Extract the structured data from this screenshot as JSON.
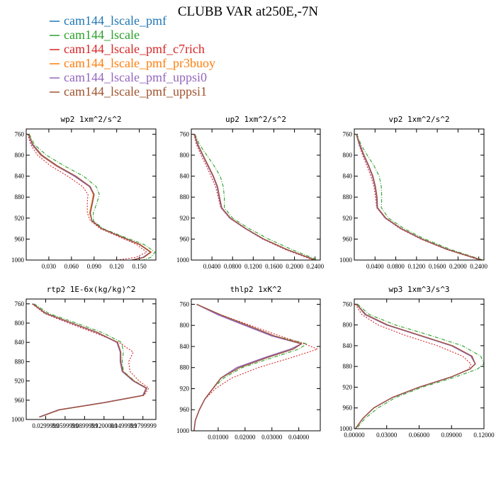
{
  "title": "CLUBB VAR at250E,-7N",
  "legend": [
    {
      "label": "cam144_lscale_pmf",
      "color": "#1f77b4"
    },
    {
      "label": "cam144_lscale",
      "color": "#2ca02c"
    },
    {
      "label": "cam144_lscale_pmf_c7rich",
      "color": "#d62728"
    },
    {
      "label": "cam144_lscale_pmf_pr3buoy",
      "color": "#ff7f0e"
    },
    {
      "label": "cam144_lscale_pmf_uppsi0",
      "color": "#9467bd"
    },
    {
      "label": "cam144_lscale_pmf_uppsi1",
      "color": "#a0522d"
    }
  ],
  "chart_data": [
    {
      "type": "line",
      "title": "wp2  1xm^2/s^2",
      "xlim": [
        0.0,
        0.172
      ],
      "ylim": [
        1000,
        750
      ],
      "xticks": [
        0.03,
        0.06,
        0.09,
        0.12,
        0.15
      ],
      "xtick_labels": [
        "0.030",
        "0.060",
        "0.090",
        "0.120",
        "0.150"
      ],
      "yticks": [
        760,
        800,
        840,
        880,
        920,
        960,
        1000
      ],
      "y": [
        760,
        780,
        800,
        820,
        840,
        860,
        875,
        890,
        910,
        925,
        940,
        955,
        970,
        985,
        995,
        1000
      ],
      "series": [
        {
          "name": "cam144_lscale_pmf",
          "values": [
            0.003,
            0.008,
            0.02,
            0.04,
            0.065,
            0.085,
            0.09,
            0.088,
            0.085,
            0.087,
            0.1,
            0.125,
            0.15,
            0.165,
            0.155,
            0.14
          ]
        },
        {
          "name": "cam144_lscale",
          "values": [
            0.004,
            0.011,
            0.027,
            0.05,
            0.076,
            0.093,
            0.097,
            0.094,
            0.089,
            0.089,
            0.102,
            0.128,
            0.156,
            0.171,
            0.165,
            0.155
          ]
        },
        {
          "name": "cam144_lscale_pmf_c7rich",
          "values": [
            0.002,
            0.006,
            0.015,
            0.032,
            0.055,
            0.075,
            0.082,
            0.081,
            0.081,
            0.085,
            0.098,
            0.122,
            0.146,
            0.16,
            0.145,
            0.12
          ]
        },
        {
          "name": "cam144_lscale_pmf_pr3buoy",
          "values": [
            0.003,
            0.008,
            0.019,
            0.039,
            0.064,
            0.084,
            0.089,
            0.087,
            0.084,
            0.087,
            0.1,
            0.125,
            0.151,
            0.166,
            0.156,
            0.141
          ]
        },
        {
          "name": "cam144_lscale_pmf_uppsi0",
          "values": [
            0.003,
            0.008,
            0.02,
            0.04,
            0.064,
            0.084,
            0.09,
            0.088,
            0.085,
            0.087,
            0.1,
            0.125,
            0.15,
            0.165,
            0.155,
            0.14
          ]
        },
        {
          "name": "cam144_lscale_pmf_uppsi1",
          "values": [
            0.003,
            0.009,
            0.021,
            0.041,
            0.066,
            0.085,
            0.09,
            0.088,
            0.085,
            0.087,
            0.1,
            0.125,
            0.15,
            0.165,
            0.156,
            0.141
          ]
        }
      ]
    },
    {
      "type": "line",
      "title": "up2  1xm^2/s^2",
      "xlim": [
        0.0,
        0.25
      ],
      "ylim": [
        1000,
        750
      ],
      "xticks": [
        0.04,
        0.08,
        0.12,
        0.16,
        0.2,
        0.24
      ],
      "xtick_labels": [
        "0.0400",
        "0.0800",
        "0.1200",
        "0.1600",
        "0.2000",
        "0.2400"
      ],
      "yticks": [
        760,
        800,
        840,
        880,
        920,
        960,
        1000
      ],
      "y": [
        760,
        780,
        800,
        820,
        840,
        860,
        880,
        900,
        920,
        940,
        960,
        980,
        1000
      ],
      "series": [
        {
          "name": "cam144_lscale_pmf",
          "values": [
            0.006,
            0.012,
            0.022,
            0.032,
            0.042,
            0.05,
            0.054,
            0.058,
            0.075,
            0.105,
            0.14,
            0.185,
            0.24
          ]
        },
        {
          "name": "cam144_lscale",
          "values": [
            0.007,
            0.016,
            0.03,
            0.044,
            0.056,
            0.062,
            0.064,
            0.064,
            0.08,
            0.112,
            0.15,
            0.195,
            0.245
          ]
        },
        {
          "name": "cam144_lscale_pmf_c7rich",
          "values": [
            0.005,
            0.01,
            0.019,
            0.029,
            0.038,
            0.047,
            0.052,
            0.057,
            0.074,
            0.104,
            0.138,
            0.182,
            0.236
          ]
        },
        {
          "name": "cam144_lscale_pmf_pr3buoy",
          "values": [
            0.006,
            0.012,
            0.022,
            0.032,
            0.042,
            0.05,
            0.054,
            0.058,
            0.075,
            0.105,
            0.14,
            0.185,
            0.24
          ]
        },
        {
          "name": "cam144_lscale_pmf_uppsi0",
          "values": [
            0.006,
            0.012,
            0.022,
            0.032,
            0.042,
            0.05,
            0.054,
            0.058,
            0.075,
            0.105,
            0.14,
            0.185,
            0.24
          ]
        },
        {
          "name": "cam144_lscale_pmf_uppsi1",
          "values": [
            0.006,
            0.013,
            0.023,
            0.033,
            0.043,
            0.051,
            0.055,
            0.059,
            0.076,
            0.106,
            0.141,
            0.186,
            0.241
          ]
        }
      ]
    },
    {
      "type": "line",
      "title": "vp2  1xm^2/s^2",
      "xlim": [
        0.0,
        0.25
      ],
      "ylim": [
        1000,
        750
      ],
      "xticks": [
        0.04,
        0.08,
        0.12,
        0.16,
        0.2,
        0.24
      ],
      "xtick_labels": [
        "0.0400",
        "0.0800",
        "0.1200",
        "0.1600",
        "0.2000",
        "0.2400"
      ],
      "yticks": [
        760,
        800,
        840,
        880,
        920,
        960,
        1000
      ],
      "y": [
        760,
        780,
        800,
        820,
        840,
        860,
        880,
        900,
        920,
        940,
        960,
        980,
        1000
      ],
      "series": [
        {
          "name": "cam144_lscale_pmf",
          "values": [
            0.004,
            0.01,
            0.018,
            0.027,
            0.035,
            0.04,
            0.043,
            0.044,
            0.06,
            0.09,
            0.13,
            0.18,
            0.245
          ]
        },
        {
          "name": "cam144_lscale",
          "values": [
            0.005,
            0.013,
            0.025,
            0.038,
            0.048,
            0.052,
            0.053,
            0.052,
            0.066,
            0.096,
            0.136,
            0.186,
            0.248
          ]
        },
        {
          "name": "cam144_lscale_pmf_c7rich",
          "values": [
            0.004,
            0.009,
            0.016,
            0.024,
            0.032,
            0.038,
            0.041,
            0.043,
            0.059,
            0.088,
            0.128,
            0.178,
            0.242
          ]
        },
        {
          "name": "cam144_lscale_pmf_pr3buoy",
          "values": [
            0.004,
            0.01,
            0.018,
            0.027,
            0.035,
            0.04,
            0.043,
            0.044,
            0.06,
            0.09,
            0.13,
            0.18,
            0.245
          ]
        },
        {
          "name": "cam144_lscale_pmf_uppsi0",
          "values": [
            0.004,
            0.01,
            0.018,
            0.027,
            0.035,
            0.04,
            0.043,
            0.044,
            0.06,
            0.09,
            0.13,
            0.18,
            0.245
          ]
        },
        {
          "name": "cam144_lscale_pmf_uppsi1",
          "values": [
            0.004,
            0.011,
            0.019,
            0.028,
            0.036,
            0.041,
            0.044,
            0.045,
            0.061,
            0.091,
            0.131,
            0.181,
            0.246
          ]
        }
      ]
    },
    {
      "type": "line",
      "title": "rtp2  1E-6x(kg/kg)^2",
      "xlim": [
        0.0,
        0.2
      ],
      "ylim": [
        1000,
        750
      ],
      "xticks": [
        0.03,
        0.06,
        0.09,
        0.12,
        0.15,
        0.18
      ],
      "xtick_labels": [
        "0.0299999",
        "0.0599999",
        "0.0899999",
        "0.1200000",
        "0.1499999",
        "0.1799999"
      ],
      "yticks": [
        760,
        800,
        840,
        880,
        920,
        960,
        1000
      ],
      "y": [
        760,
        780,
        800,
        820,
        840,
        860,
        880,
        900,
        920,
        935,
        950,
        965,
        980,
        995
      ],
      "series": [
        {
          "name": "cam144_lscale_pmf",
          "values": [
            0.01,
            0.03,
            0.07,
            0.11,
            0.14,
            0.145,
            0.145,
            0.148,
            0.165,
            0.185,
            0.18,
            0.12,
            0.05,
            0.02
          ]
        },
        {
          "name": "cam144_lscale",
          "values": [
            0.012,
            0.035,
            0.077,
            0.118,
            0.147,
            0.15,
            0.148,
            0.15,
            0.167,
            0.186,
            0.181,
            0.121,
            0.051,
            0.021
          ]
        },
        {
          "name": "cam144_lscale_pmf_c7rich",
          "values": [
            0.009,
            0.028,
            0.065,
            0.105,
            0.143,
            0.165,
            0.158,
            0.16,
            0.174,
            0.189,
            0.182,
            0.122,
            0.052,
            0.02
          ]
        },
        {
          "name": "cam144_lscale_pmf_pr3buoy",
          "values": [
            0.01,
            0.03,
            0.07,
            0.11,
            0.14,
            0.145,
            0.145,
            0.148,
            0.165,
            0.185,
            0.18,
            0.12,
            0.05,
            0.02
          ]
        },
        {
          "name": "cam144_lscale_pmf_uppsi0",
          "values": [
            0.01,
            0.03,
            0.07,
            0.11,
            0.14,
            0.145,
            0.145,
            0.148,
            0.165,
            0.185,
            0.18,
            0.12,
            0.05,
            0.02
          ]
        },
        {
          "name": "cam144_lscale_pmf_uppsi1",
          "values": [
            0.01,
            0.031,
            0.071,
            0.111,
            0.141,
            0.146,
            0.146,
            0.149,
            0.166,
            0.186,
            0.181,
            0.121,
            0.051,
            0.021
          ]
        }
      ]
    },
    {
      "type": "line",
      "title": "thlp2  1xK^2",
      "xlim": [
        0.0,
        0.048
      ],
      "ylim": [
        1000,
        750
      ],
      "xticks": [
        0.01,
        0.02,
        0.03,
        0.04
      ],
      "xtick_labels": [
        "0.01000",
        "0.02000",
        "0.03000",
        "0.04000"
      ],
      "yticks": [
        760,
        800,
        840,
        880,
        920,
        960,
        1000
      ],
      "y": [
        760,
        780,
        800,
        820,
        835,
        845,
        860,
        880,
        900,
        920,
        940,
        960,
        980,
        1000
      ],
      "series": [
        {
          "name": "cam144_lscale_pmf",
          "values": [
            0.002,
            0.01,
            0.02,
            0.03,
            0.041,
            0.037,
            0.028,
            0.017,
            0.011,
            0.008,
            0.005,
            0.003,
            0.0015,
            0.001
          ]
        },
        {
          "name": "cam144_lscale",
          "values": [
            0.002,
            0.011,
            0.021,
            0.031,
            0.043,
            0.04,
            0.031,
            0.019,
            0.012,
            0.008,
            0.005,
            0.003,
            0.0015,
            0.001
          ]
        },
        {
          "name": "cam144_lscale_pmf_c7rich",
          "values": [
            0.002,
            0.011,
            0.022,
            0.033,
            0.042,
            0.047,
            0.038,
            0.025,
            0.015,
            0.009,
            0.005,
            0.003,
            0.0015,
            0.001
          ]
        },
        {
          "name": "cam144_lscale_pmf_pr3buoy",
          "values": [
            0.002,
            0.01,
            0.02,
            0.03,
            0.041,
            0.037,
            0.028,
            0.017,
            0.011,
            0.008,
            0.005,
            0.003,
            0.0015,
            0.001
          ]
        },
        {
          "name": "cam144_lscale_pmf_uppsi0",
          "values": [
            0.002,
            0.01,
            0.02,
            0.03,
            0.041,
            0.037,
            0.028,
            0.017,
            0.011,
            0.008,
            0.005,
            0.003,
            0.0015,
            0.001
          ]
        },
        {
          "name": "cam144_lscale_pmf_uppsi1",
          "values": [
            0.002,
            0.011,
            0.021,
            0.031,
            0.041,
            0.038,
            0.029,
            0.018,
            0.011,
            0.008,
            0.005,
            0.003,
            0.0015,
            0.001
          ]
        }
      ]
    },
    {
      "type": "line",
      "title": "wp3  1xm^3/s^3",
      "xlim": [
        0.0,
        0.12
      ],
      "ylim": [
        1000,
        750
      ],
      "xticks": [
        0.0,
        0.03,
        0.06,
        0.09,
        0.12
      ],
      "xtick_labels": [
        "0.00000",
        "0.03000",
        "0.06000",
        "0.09000",
        "0.12000"
      ],
      "yticks": [
        760,
        800,
        840,
        880,
        920,
        960,
        1000
      ],
      "y": [
        760,
        780,
        800,
        820,
        840,
        860,
        875,
        885,
        900,
        920,
        940,
        960,
        980,
        1000
      ],
      "series": [
        {
          "name": "cam144_lscale_pmf",
          "values": [
            0.002,
            0.01,
            0.03,
            0.06,
            0.09,
            0.108,
            0.112,
            0.107,
            0.09,
            0.06,
            0.035,
            0.018,
            0.008,
            0.001
          ]
        },
        {
          "name": "cam144_lscale",
          "values": [
            0.003,
            0.014,
            0.038,
            0.07,
            0.1,
            0.117,
            0.12,
            0.114,
            0.094,
            0.063,
            0.038,
            0.022,
            0.01,
            0.002
          ]
        },
        {
          "name": "cam144_lscale_pmf_c7rich",
          "values": [
            0.001,
            0.007,
            0.022,
            0.047,
            0.077,
            0.1,
            0.108,
            0.106,
            0.09,
            0.06,
            0.035,
            0.018,
            0.008,
            0.001
          ]
        },
        {
          "name": "cam144_lscale_pmf_pr3buoy",
          "values": [
            0.002,
            0.01,
            0.03,
            0.06,
            0.09,
            0.108,
            0.112,
            0.107,
            0.09,
            0.06,
            0.035,
            0.018,
            0.008,
            0.001
          ]
        },
        {
          "name": "cam144_lscale_pmf_uppsi0",
          "values": [
            0.002,
            0.01,
            0.03,
            0.06,
            0.09,
            0.108,
            0.112,
            0.107,
            0.09,
            0.06,
            0.035,
            0.018,
            0.008,
            0.001
          ]
        },
        {
          "name": "cam144_lscale_pmf_uppsi1",
          "values": [
            0.002,
            0.011,
            0.031,
            0.061,
            0.091,
            0.109,
            0.112,
            0.107,
            0.09,
            0.06,
            0.035,
            0.018,
            0.008,
            0.001
          ]
        }
      ]
    }
  ]
}
